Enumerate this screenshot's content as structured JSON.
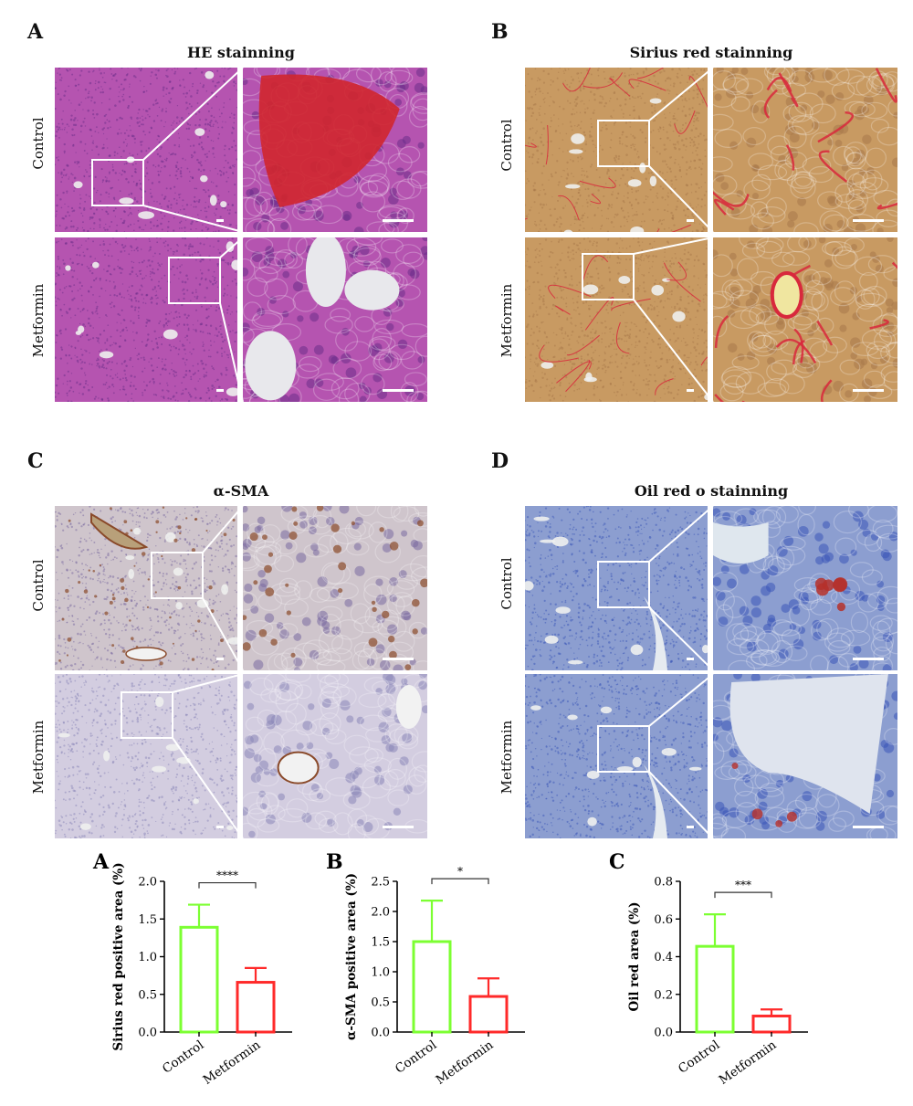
{
  "panels": [
    {
      "letter": "A",
      "title": "HE stainning",
      "rows": [
        "Control",
        "Metformin"
      ]
    },
    {
      "letter": "B",
      "title": "Sirius red stainning",
      "rows": [
        "Control",
        "Metformin"
      ]
    },
    {
      "letter": "C",
      "title": "α-SMA",
      "rows": [
        "Control",
        "Metformin"
      ]
    },
    {
      "letter": "D",
      "title": "Oil red o stainning",
      "rows": [
        "Control",
        "Metformin"
      ]
    }
  ],
  "colors": {
    "he_bg": "#b554b0",
    "he_dark": "#6b2d8a",
    "he_red": "#d0262e",
    "sirius_bg": "#c89a62",
    "sirius_red": "#d8283c",
    "sma_bg": "#cfc5cc",
    "sma_brown": "#8a4a2a",
    "oil_bg": "#8c9ed0",
    "oil_blue": "#3a56b8",
    "oil_red": "#b5302a",
    "control_bar": "#7cff32",
    "metformin_bar": "#ff2a2a"
  },
  "chart_data": [
    {
      "type": "bar",
      "letter": "A",
      "categories": [
        "Control",
        "Metformin"
      ],
      "values": [
        1.39,
        0.66
      ],
      "errors": [
        0.3,
        0.19
      ],
      "title": "",
      "xlabel": "",
      "ylabel": "Sirius red positive area (%)",
      "ylim": [
        0,
        2.0
      ],
      "yticks": [
        "0.0",
        "0.5",
        "1.0",
        "1.5",
        "2.0"
      ],
      "significance": "****",
      "grid": false
    },
    {
      "type": "bar",
      "letter": "B",
      "categories": [
        "Control",
        "Metformin"
      ],
      "values": [
        1.5,
        0.59
      ],
      "errors": [
        0.68,
        0.3
      ],
      "title": "",
      "xlabel": "",
      "ylabel": "α-SMA positive area (%)",
      "ylim": [
        0,
        2.5
      ],
      "yticks": [
        "0.0",
        "0.5",
        "1.0",
        "1.5",
        "2.0",
        "2.5"
      ],
      "significance": "*",
      "grid": false
    },
    {
      "type": "bar",
      "letter": "C",
      "categories": [
        "Control",
        "Metformin"
      ],
      "values": [
        0.455,
        0.085
      ],
      "errors": [
        0.17,
        0.035
      ],
      "title": "",
      "xlabel": "",
      "ylabel": "Oil red area (%)",
      "ylim": [
        0,
        0.8
      ],
      "yticks": [
        "0.0",
        "0.2",
        "0.4",
        "0.6",
        "0.8"
      ],
      "significance": "***",
      "grid": false
    }
  ]
}
